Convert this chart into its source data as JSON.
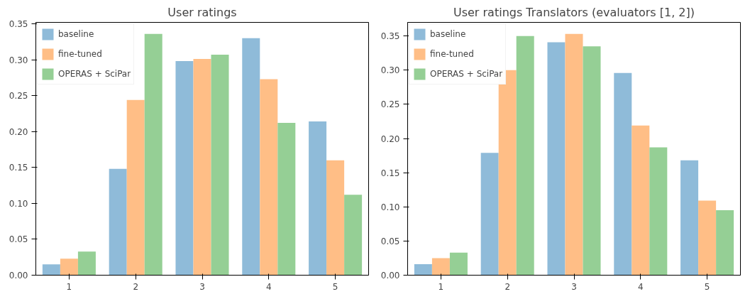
{
  "chart_data": [
    {
      "type": "bar",
      "title": "User ratings",
      "categories": [
        "1",
        "2",
        "3",
        "4",
        "5"
      ],
      "series": [
        {
          "name": "baseline",
          "color": "#8fbbd9",
          "values": [
            0.015,
            0.148,
            0.298,
            0.33,
            0.214
          ]
        },
        {
          "name": "fine-tuned",
          "color": "#ffbe86",
          "values": [
            0.023,
            0.244,
            0.301,
            0.273,
            0.16
          ]
        },
        {
          "name": "OPERAS + SciPar",
          "color": "#95cf95",
          "values": [
            0.033,
            0.336,
            0.307,
            0.212,
            0.112
          ]
        }
      ],
      "ylim": [
        0,
        0.352
      ],
      "yticks": [
        {
          "value": 0,
          "label": "0.00"
        },
        0.05,
        {
          "value": 0.1,
          "label": "0.10"
        },
        0.15,
        {
          "value": 0.2,
          "label": "0.20"
        },
        0.25,
        {
          "value": 0.3,
          "label": "0.30"
        },
        0.35
      ],
      "grid": false,
      "legend": "top left"
    },
    {
      "type": "bar",
      "title": "User ratings Translators (evaluators [1, 2])",
      "categories": [
        "1",
        "2",
        "3",
        "4",
        "5"
      ],
      "series": [
        {
          "name": "baseline",
          "color": "#8fbbd9",
          "values": [
            0.016,
            0.179,
            0.341,
            0.296,
            0.168
          ]
        },
        {
          "name": "fine-tuned",
          "color": "#ffbe86",
          "values": [
            0.025,
            0.3,
            0.353,
            0.219,
            0.109
          ]
        },
        {
          "name": "OPERAS + SciPar",
          "color": "#95cf95",
          "values": [
            0.033,
            0.35,
            0.335,
            0.187,
            0.095
          ]
        }
      ],
      "ylim": [
        0,
        0.37
      ],
      "yticks": [
        {
          "value": 0,
          "label": "0.00"
        },
        0.05,
        {
          "value": 0.1,
          "label": "0.10"
        },
        0.15,
        {
          "value": 0.2,
          "label": "0.20"
        },
        0.25,
        {
          "value": 0.3,
          "label": "0.30"
        },
        0.35
      ],
      "grid": false,
      "legend": "top left"
    }
  ]
}
